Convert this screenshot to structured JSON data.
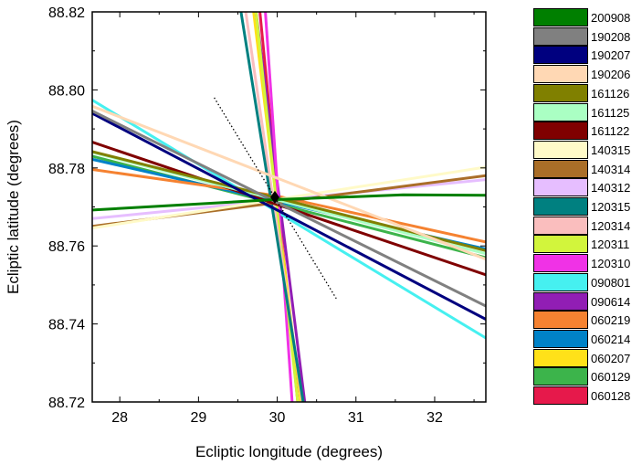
{
  "chart_data": {
    "type": "line",
    "title": "",
    "xlabel": "Ecliptic longitude (degrees)",
    "ylabel": "Ecliptic latitude (degrees)",
    "xlim": [
      27.65,
      32.65
    ],
    "ylim": [
      88.72,
      88.82
    ],
    "x_ticks": [
      28,
      29,
      30,
      31,
      32
    ],
    "y_ticks": [
      88.72,
      88.74,
      88.76,
      88.78,
      88.8,
      88.82
    ],
    "x_tick_labels": [
      "28",
      "29",
      "30",
      "31",
      "32"
    ],
    "y_tick_labels": [
      "88.72",
      "88.74",
      "88.76",
      "88.78",
      "88.80",
      "88.82"
    ],
    "grid": false,
    "legend_position": "outside-right",
    "series": [
      {
        "name": "200908",
        "color": "#007f00",
        "x": [
          27.65,
          29.9,
          31.6,
          32.65
        ],
        "y": [
          88.7692,
          88.7718,
          88.7731,
          88.773
        ]
      },
      {
        "name": "190208",
        "color": "#808080",
        "x": [
          27.65,
          32.65
        ],
        "y": [
          88.7946,
          88.7446
        ]
      },
      {
        "name": "190207",
        "color": "#00007f",
        "x": [
          27.65,
          32.65
        ],
        "y": [
          88.794,
          88.7412
        ]
      },
      {
        "name": "190206",
        "color": "#ffd8b4",
        "x": [
          27.65,
          32.65
        ],
        "y": [
          88.7958,
          88.7566
        ]
      },
      {
        "name": "161126",
        "color": "#808000",
        "x": [
          27.65,
          32.65
        ],
        "y": [
          88.7842,
          88.7588
        ]
      },
      {
        "name": "161125",
        "color": "#aaffc3",
        "x": [
          27.65,
          32.65
        ],
        "y": [
          88.784,
          88.758
        ]
      },
      {
        "name": "161122",
        "color": "#800000",
        "x": [
          27.65,
          32.65
        ],
        "y": [
          88.7866,
          88.7526
        ]
      },
      {
        "name": "140315",
        "color": "#fffac8",
        "x": [
          27.65,
          32.65
        ],
        "y": [
          88.7646,
          88.7802
        ]
      },
      {
        "name": "140314",
        "color": "#aa6e28",
        "x": [
          27.65,
          32.65
        ],
        "y": [
          88.765,
          88.778
        ]
      },
      {
        "name": "140312",
        "color": "#e6beff",
        "x": [
          27.65,
          32.65
        ],
        "y": [
          88.767,
          88.777
        ]
      },
      {
        "name": "120315",
        "color": "#008080",
        "x": [
          29.54,
          30.33
        ],
        "y": [
          88.82,
          88.72
        ]
      },
      {
        "name": "120314",
        "color": "#fabebe",
        "x": [
          29.6,
          30.32
        ],
        "y": [
          88.82,
          88.72
        ]
      },
      {
        "name": "120311",
        "color": "#d2f53c",
        "x": [
          29.73,
          30.26
        ],
        "y": [
          88.82,
          88.72
        ]
      },
      {
        "name": "120310",
        "color": "#f032e6",
        "x": [
          29.85,
          30.19
        ],
        "y": [
          88.82,
          88.72
        ]
      },
      {
        "name": "090801",
        "color": "#46f0f0",
        "x": [
          27.65,
          32.65
        ],
        "y": [
          88.7974,
          88.7364
        ]
      },
      {
        "name": "090614",
        "color": "#911eb4",
        "x": [
          29.73,
          30.35
        ],
        "y": [
          88.82,
          88.72
        ]
      },
      {
        "name": "060219",
        "color": "#f58231",
        "x": [
          27.65,
          29.95,
          32.65
        ],
        "y": [
          88.7796,
          88.773,
          88.761
        ]
      },
      {
        "name": "060214",
        "color": "#0082c8",
        "x": [
          27.65,
          32.65
        ],
        "y": [
          88.7822,
          88.7592
        ]
      },
      {
        "name": "060207",
        "color": "#ffe119",
        "x": [
          29.7,
          30.3
        ],
        "y": [
          88.82,
          88.72
        ]
      },
      {
        "name": "060129",
        "color": "#3cb44b",
        "x": [
          27.65,
          32.65
        ],
        "y": [
          88.783,
          88.757
        ]
      },
      {
        "name": "060128",
        "color": "#e6194b",
        "x": [
          29.78,
          30.26
        ],
        "y": [
          88.82,
          88.72
        ]
      }
    ],
    "reference_line": {
      "style": "dotted",
      "color": "#000000",
      "x": [
        29.2,
        30.75
      ],
      "y": [
        88.798,
        88.7465
      ]
    },
    "intersection_point": {
      "x": 29.97,
      "y": 88.7725,
      "color": "#000000"
    }
  }
}
